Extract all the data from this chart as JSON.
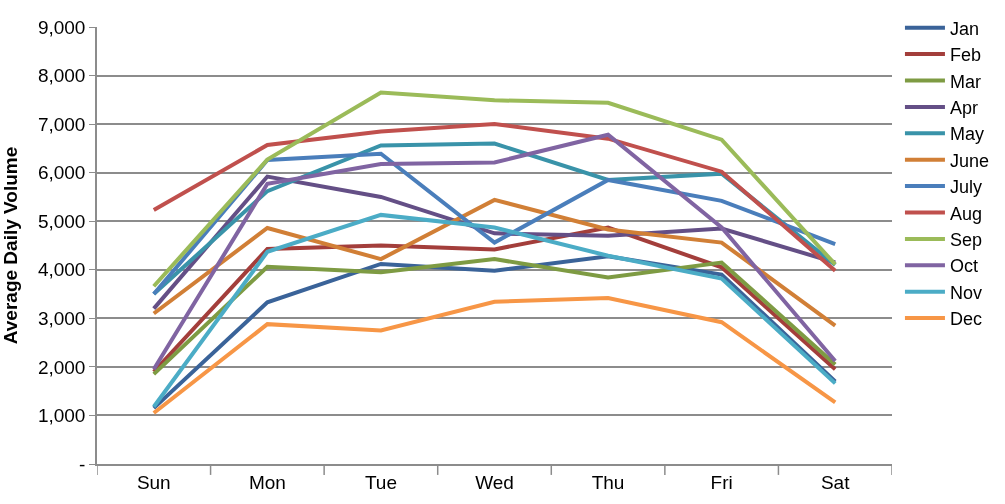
{
  "chart_data": {
    "type": "line",
    "ylabel": "Average Daily Volume",
    "categories": [
      "Sun",
      "Mon",
      "Tue",
      "Wed",
      "Thu",
      "Fri",
      "Sat"
    ],
    "ylim": [
      0,
      9000
    ],
    "yticks": [
      {
        "value": 0,
        "label": "-"
      },
      {
        "value": 1000,
        "label": "1,000"
      },
      {
        "value": 2000,
        "label": "2,000"
      },
      {
        "value": 3000,
        "label": "3,000"
      },
      {
        "value": 4000,
        "label": "4,000"
      },
      {
        "value": 5000,
        "label": "5,000"
      },
      {
        "value": 6000,
        "label": "6,000"
      },
      {
        "value": 7000,
        "label": "7,000"
      },
      {
        "value": 8000,
        "label": "8,000"
      },
      {
        "value": 9000,
        "label": "9,000"
      }
    ],
    "grid": "y",
    "legend": "right",
    "marker": "none",
    "line_style": "solid",
    "series": [
      {
        "name": "Jan",
        "color": "#3a6399",
        "values": [
          1150,
          3330,
          4120,
          3980,
          4280,
          3900,
          1700
        ]
      },
      {
        "name": "Feb",
        "color": "#a33e3b",
        "values": [
          1900,
          4430,
          4500,
          4420,
          4870,
          4050,
          1950
        ]
      },
      {
        "name": "Mar",
        "color": "#7e9b43",
        "values": [
          1850,
          4060,
          3950,
          4220,
          3840,
          4150,
          2050
        ]
      },
      {
        "name": "Apr",
        "color": "#644f86",
        "values": [
          3200,
          5920,
          5500,
          4750,
          4700,
          4850,
          4150
        ]
      },
      {
        "name": "May",
        "color": "#3993a9",
        "values": [
          3500,
          5620,
          6560,
          6600,
          5850,
          5980,
          4100
        ]
      },
      {
        "name": "June",
        "color": "#d17f36",
        "values": [
          3100,
          4860,
          4220,
          5440,
          4830,
          4560,
          2850
        ]
      },
      {
        "name": "July",
        "color": "#4a7ebb",
        "values": [
          3500,
          6260,
          6390,
          4560,
          5850,
          5420,
          4530
        ]
      },
      {
        "name": "Aug",
        "color": "#c0504d",
        "values": [
          5230,
          6570,
          6850,
          7000,
          6700,
          6020,
          3980
        ]
      },
      {
        "name": "Sep",
        "color": "#9bbb59",
        "values": [
          3660,
          6270,
          7650,
          7490,
          7440,
          6680,
          4110
        ]
      },
      {
        "name": "Oct",
        "color": "#8064a2",
        "values": [
          1950,
          5770,
          6180,
          6210,
          6780,
          4870,
          2120
        ]
      },
      {
        "name": "Nov",
        "color": "#4bacc6",
        "values": [
          1180,
          4370,
          5130,
          4870,
          4290,
          3820,
          1660
        ]
      },
      {
        "name": "Dec",
        "color": "#f79646",
        "values": [
          1050,
          2880,
          2750,
          3340,
          3420,
          2920,
          1270
        ]
      }
    ]
  }
}
